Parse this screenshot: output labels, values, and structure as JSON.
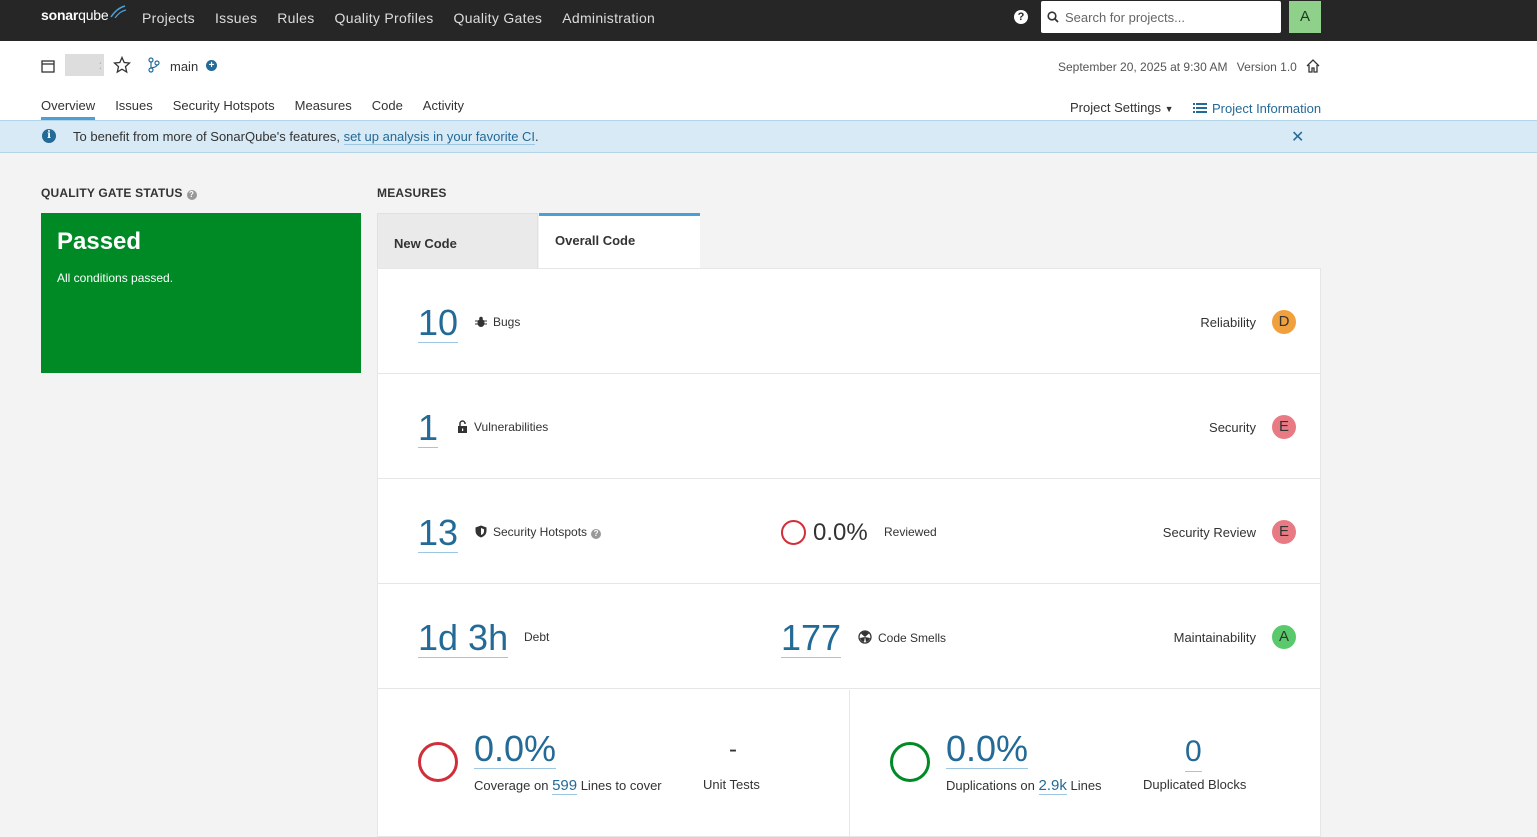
{
  "nav": {
    "logo_sonar": "sonar",
    "logo_qube": "qube",
    "items": [
      "Projects",
      "Issues",
      "Rules",
      "Quality Profiles",
      "Quality Gates",
      "Administration"
    ],
    "help": "?",
    "search_placeholder": "Search for projects...",
    "avatar": "A"
  },
  "project": {
    "branch": "main",
    "date": "September 20, 2025 at 9:30 AM",
    "version": "Version 1.0",
    "tabs": [
      "Overview",
      "Issues",
      "Security Hotspots",
      "Measures",
      "Code",
      "Activity"
    ],
    "settings": "Project Settings",
    "info": "Project Information"
  },
  "banner": {
    "text": "To benefit from more of SonarQube's features, ",
    "link": "set up analysis in your favorite CI",
    "end": "."
  },
  "quality_gate": {
    "title": "QUALITY GATE STATUS",
    "status": "Passed",
    "message": "All conditions passed."
  },
  "measures": {
    "title": "MEASURES",
    "tab_new": "New Code",
    "tab_overall": "Overall Code",
    "bugs": {
      "value": "10",
      "label": "Bugs",
      "category": "Reliability",
      "rating": "D"
    },
    "vulns": {
      "value": "1",
      "label": "Vulnerabilities",
      "category": "Security",
      "rating": "E"
    },
    "hotspots": {
      "value": "13",
      "label": "Security Hotspots",
      "reviewed_pct": "0.0%",
      "reviewed_label": "Reviewed",
      "category": "Security Review",
      "rating": "E"
    },
    "debt": {
      "value": "1d 3h",
      "label": "Debt",
      "smells_value": "177",
      "smells_label": "Code Smells",
      "category": "Maintainability",
      "rating": "A"
    },
    "coverage": {
      "value": "0.0%",
      "prefix": "Coverage on ",
      "lines": "599",
      "suffix": " Lines to cover",
      "tests_value": "-",
      "tests_label": "Unit Tests"
    },
    "duplications": {
      "value": "0.0%",
      "prefix": "Duplications on ",
      "lines": "2.9k",
      "suffix": " Lines",
      "blocks_value": "0",
      "blocks_label": "Duplicated Blocks"
    }
  },
  "colors": {
    "passed": "#008a25",
    "accent": "#236a97",
    "rating_D": "#f0a03c",
    "rating_E": "#e87a84",
    "rating_A": "#5ac96c"
  }
}
